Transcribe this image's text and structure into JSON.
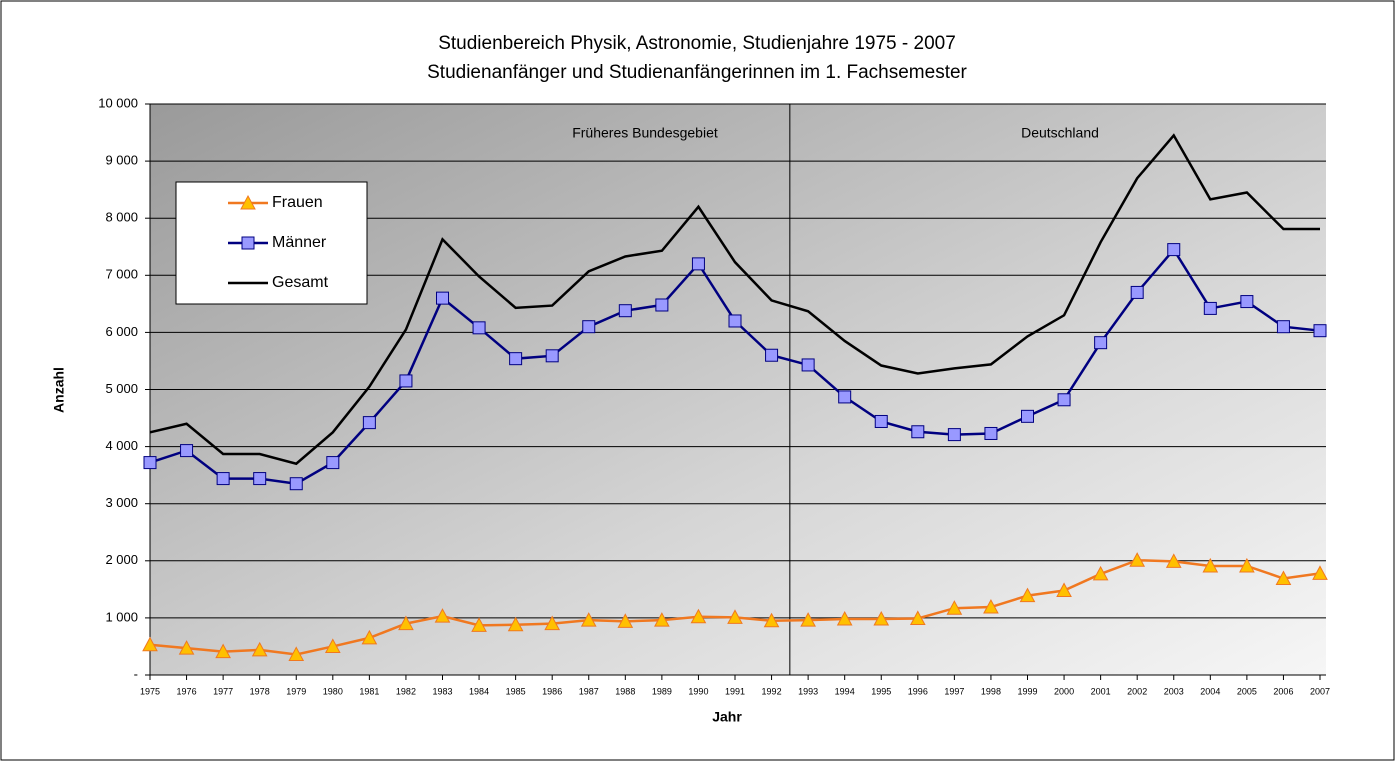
{
  "chart_data": {
    "type": "line",
    "title": "Studienbereich Physik, Astronomie, Studienjahre 1975 - 2007",
    "subtitle": "Studienanfänger und Studienanfängerinnen im 1. Fachsemester",
    "x_label": "Jahr",
    "y_label": "Anzahl",
    "annotations": [
      "Früheres Bundesgebiet",
      "Deutschland"
    ],
    "categories": [
      "1975",
      "1976",
      "1977",
      "1978",
      "1979",
      "1980",
      "1981",
      "1982",
      "1983",
      "1984",
      "1985",
      "1986",
      "1987",
      "1988",
      "1989",
      "1990",
      "1991",
      "1992",
      "1993",
      "1994",
      "1995",
      "1996",
      "1997",
      "1998",
      "1999",
      "2000",
      "2001",
      "2002",
      "2003",
      "2004",
      "2005",
      "2006",
      "2007"
    ],
    "series": [
      {
        "name": "Frauen",
        "color": "#f07820",
        "marker_color": "#ffc000",
        "marker": "triangle",
        "values": [
          530,
          470,
          410,
          440,
          360,
          500,
          650,
          900,
          1030,
          870,
          880,
          900,
          960,
          940,
          960,
          1020,
          1010,
          950,
          960,
          980,
          980,
          990,
          1170,
          1190,
          1390,
          1480,
          1770,
          2010,
          1990,
          1910,
          1910,
          1690,
          1780
        ]
      },
      {
        "name": "Männer",
        "color": "#000080",
        "marker_color": "#9999ff",
        "marker": "square",
        "values": [
          3720,
          3930,
          3440,
          3440,
          3350,
          3720,
          4420,
          5150,
          6600,
          6080,
          5540,
          5590,
          6100,
          6380,
          6480,
          7200,
          6200,
          5600,
          5430,
          4870,
          4440,
          4260,
          4210,
          4230,
          4530,
          4820,
          5820,
          6700,
          7450,
          6420,
          6540,
          6100,
          6030
        ]
      },
      {
        "name": "Gesamt",
        "color": "#000000",
        "marker": "none",
        "values": [
          4250,
          4400,
          3870,
          3870,
          3700,
          4250,
          5050,
          6050,
          7630,
          6980,
          6430,
          6470,
          7070,
          7330,
          7430,
          8200,
          7230,
          6560,
          6370,
          5850,
          5420,
          5280,
          5370,
          5440,
          5930,
          6300,
          7580,
          8700,
          9450,
          8330,
          8450,
          7810,
          7810
        ]
      }
    ],
    "ylim": [
      0,
      10000
    ],
    "yticks": [
      {
        "value": 0,
        "label": "-"
      },
      {
        "value": 1000,
        "label": "1 000"
      },
      {
        "value": 2000,
        "label": "2 000"
      },
      {
        "value": 3000,
        "label": "3 000"
      },
      {
        "value": 4000,
        "label": "4 000"
      },
      {
        "value": 5000,
        "label": "5 000"
      },
      {
        "value": 6000,
        "label": "6 000"
      },
      {
        "value": 7000,
        "label": "7 000"
      },
      {
        "value": 8000,
        "label": "8 000"
      },
      {
        "value": 9000,
        "label": "9 000"
      },
      {
        "value": 10000,
        "label": "10 000"
      }
    ],
    "grid": true,
    "legend": "upper left"
  }
}
